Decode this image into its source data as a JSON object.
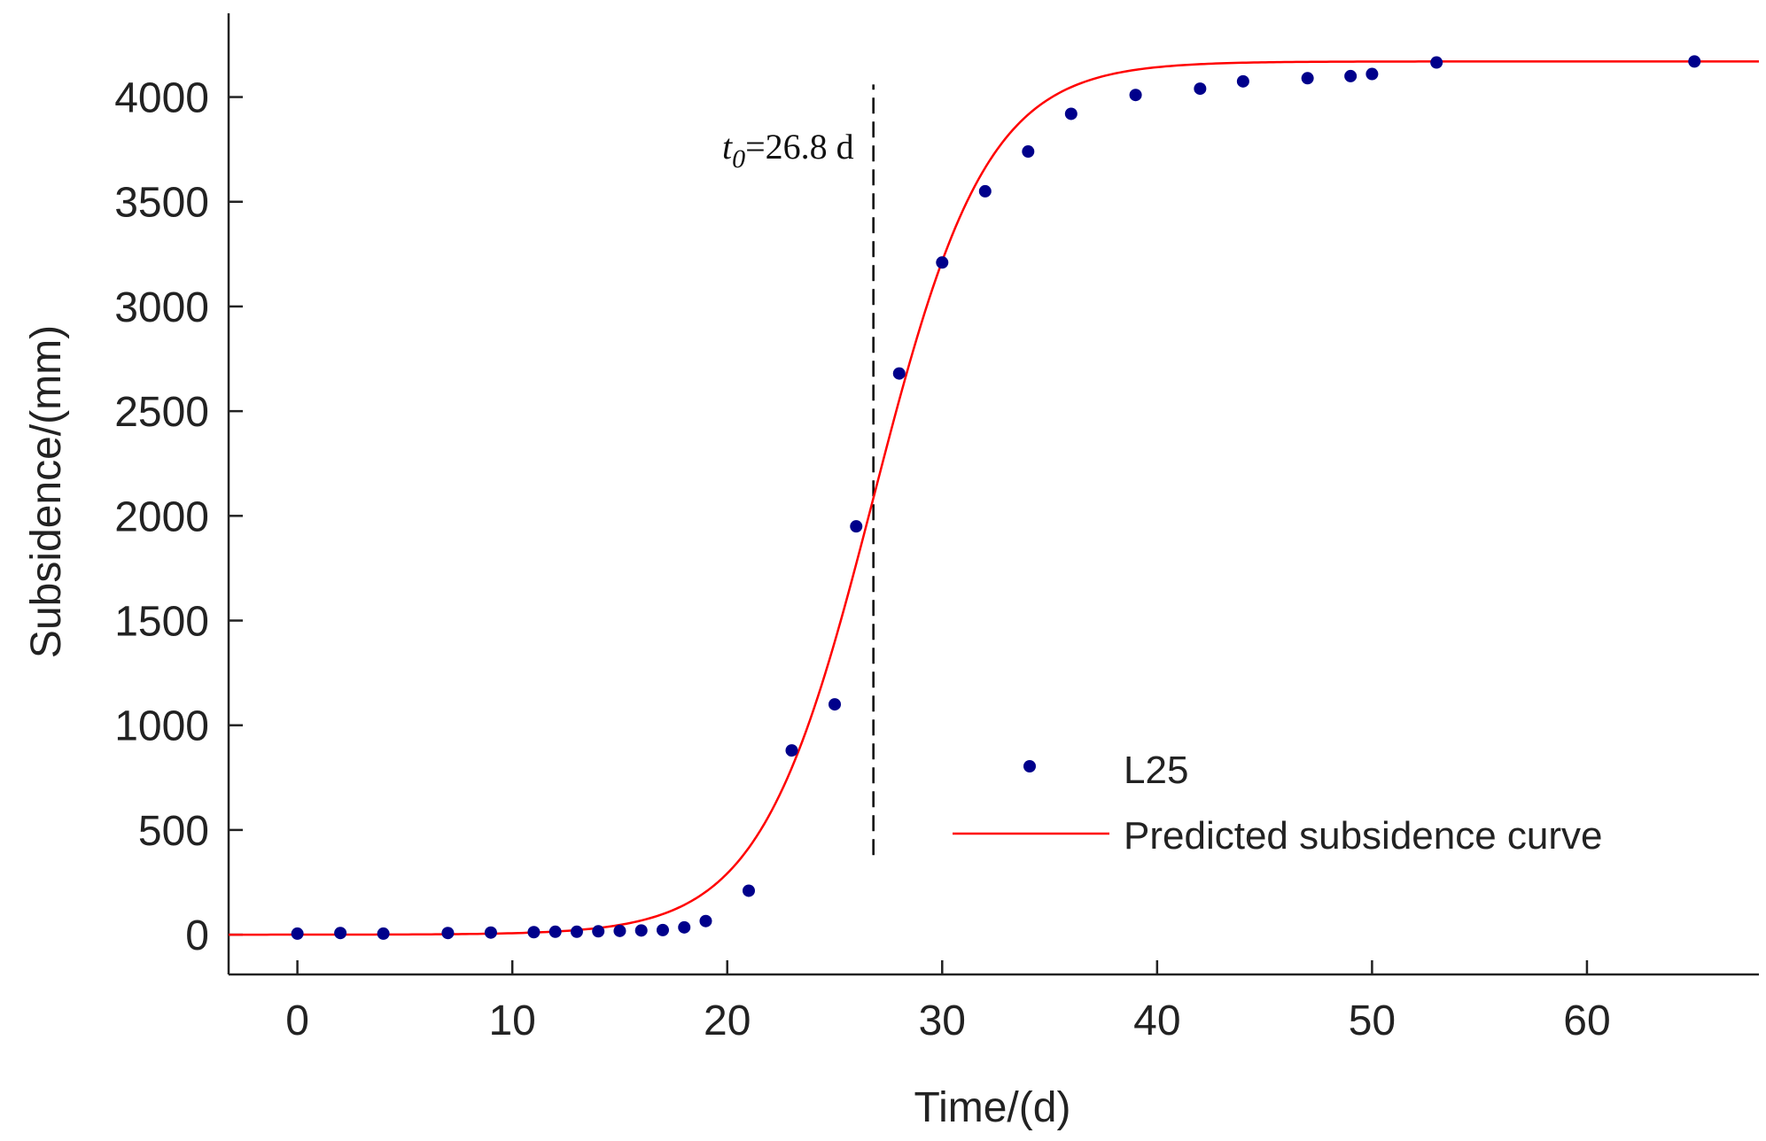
{
  "chart_data": {
    "type": "scatter",
    "title": "",
    "xlabel": "Time/(d)",
    "ylabel": "Subsidence/(mm)",
    "xlim": [
      -3.2,
      68
    ],
    "ylim": [
      -190,
      4400
    ],
    "xticks": [
      0,
      10,
      20,
      30,
      40,
      50,
      60
    ],
    "yticks": [
      0,
      500,
      1000,
      1500,
      2000,
      2500,
      3000,
      3500,
      4000
    ],
    "grid": false,
    "legend_position": "lower-right",
    "series": [
      {
        "name": "L25",
        "kind": "scatter",
        "color": "#00008b",
        "x": [
          0,
          2,
          4,
          7,
          9,
          11,
          12,
          13,
          14,
          15,
          16,
          17,
          18,
          19,
          21,
          23,
          25,
          26,
          28,
          30,
          32,
          34,
          36,
          39,
          42,
          44,
          47,
          49,
          50,
          53,
          65
        ],
        "y": [
          5,
          8,
          5,
          8,
          10,
          12,
          14,
          14,
          16,
          18,
          20,
          22,
          35,
          65,
          210,
          880,
          1100,
          1950,
          2680,
          3210,
          3550,
          3740,
          3920,
          4010,
          4040,
          4075,
          4090,
          4100,
          4110,
          4165,
          4170
        ]
      },
      {
        "name": "Predicted subsidence curve",
        "kind": "line",
        "color": "#ff0000",
        "model": "logistic",
        "params": {
          "max": 4170,
          "t0": 26.8,
          "k": 0.38
        },
        "x_range": [
          -3.2,
          68
        ]
      }
    ],
    "annotations": [
      {
        "kind": "vline",
        "x": 26.8,
        "y_range": [
          380,
          4060
        ],
        "style": "dashed",
        "color": "#000000",
        "label_main": "t",
        "label_sub": "0",
        "label_rest": "=26.8 d"
      }
    ]
  }
}
